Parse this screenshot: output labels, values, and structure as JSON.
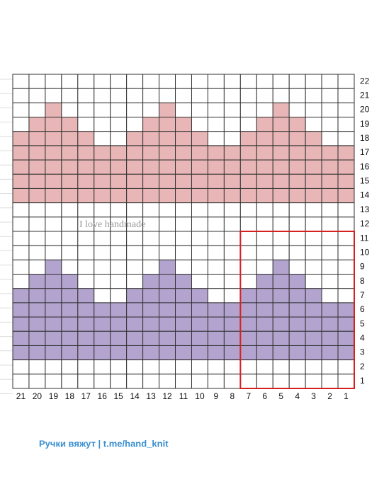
{
  "rows": [
    "22",
    "21",
    "20",
    "19",
    "18",
    "17",
    "16",
    "15",
    "14",
    "13",
    "12",
    "11",
    "10",
    "9",
    "8",
    "7",
    "6",
    "5",
    "4",
    "3",
    "2",
    "1"
  ],
  "columns": [
    "21",
    "20",
    "19",
    "18",
    "17",
    "16",
    "15",
    "14",
    "13",
    "12",
    "11",
    "10",
    "9",
    "8",
    "7",
    "6",
    "5",
    "4",
    "3",
    "2",
    "1"
  ],
  "watermark": "I love handmade",
  "footer": "Ручки вяжут | t.me/hand_knit"
}
